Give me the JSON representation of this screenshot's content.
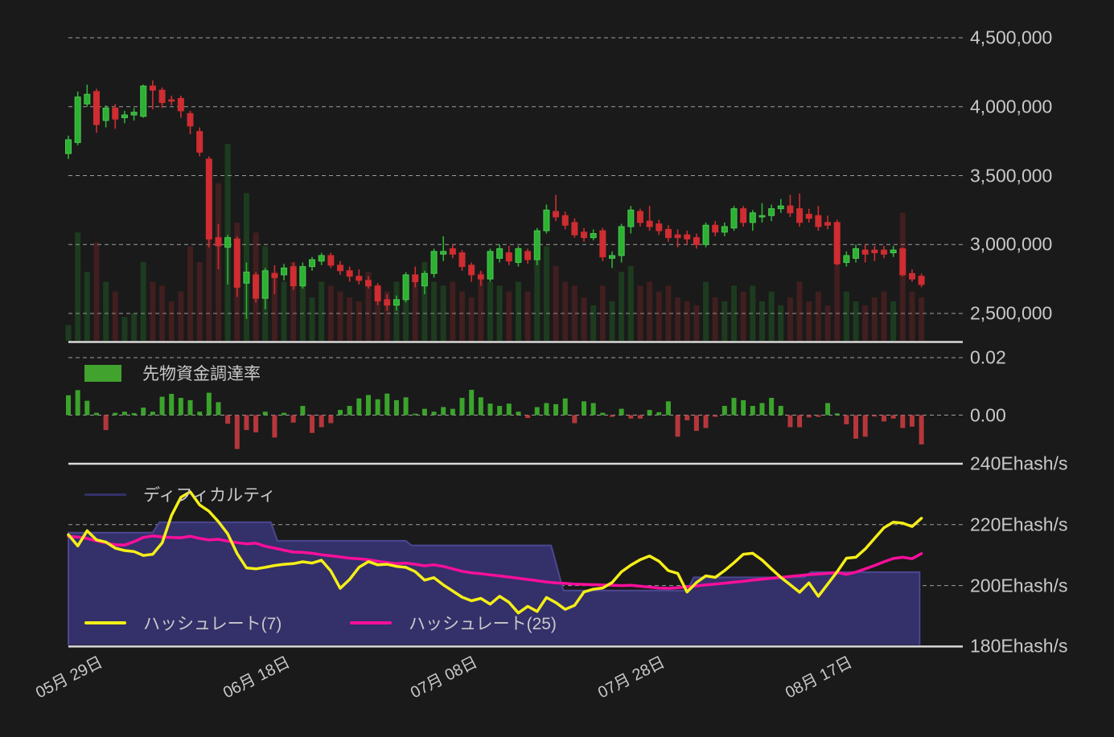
{
  "legends": {
    "funding": "先物資金調達率",
    "difficulty": "ディフィカルティ",
    "hashrate7": "ハッシュレート(7)",
    "hashrate25": "ハッシュレート(25)"
  },
  "colors": {
    "background": "#1a1a1a",
    "text": "#c9c9c9",
    "grid_dashed": "#b5b5b5",
    "separator": "#d9d9d9",
    "candle_up": "#2bb231",
    "candle_up_border": "#4ec654",
    "candle_down": "#cf2d31",
    "volume_up": "rgba(43,178,49,0.22)",
    "volume_down": "rgba(207,45,49,0.22)",
    "funding_up": "#3ba42c",
    "funding_down": "#b5373c",
    "funding_legend": "#42a22e",
    "difficulty_fill": "#34306a",
    "difficulty_line": "#4c4791",
    "hashrate7": "#f5ef17",
    "hashrate25": "#fb0f9b"
  },
  "chart_data": {
    "type": "candlestick",
    "description": "BTC/JPY daily candles with volume, futures funding rate bars, hashrate lines and mining difficulty step area",
    "x_ticks": [
      {
        "label": "05月 29日",
        "index": 0
      },
      {
        "label": "06月 18日",
        "index": 20
      },
      {
        "label": "07月 08日",
        "index": 40
      },
      {
        "label": "07月 28日",
        "index": 60
      },
      {
        "label": "08月 17日",
        "index": 80
      }
    ],
    "price_axis": {
      "unit": "JPY",
      "ticks": [
        {
          "label": "4,500,000",
          "value": 4.5
        },
        {
          "label": "4,000,000",
          "value": 4.0
        },
        {
          "label": "3,500,000",
          "value": 3.5
        },
        {
          "label": "3,000,000",
          "value": 3.0
        },
        {
          "label": "2,500,000",
          "value": 2.5
        }
      ]
    },
    "funding_axis": {
      "ticks": [
        {
          "label": "0.02",
          "value": 0.02
        },
        {
          "label": "0.00",
          "value": 0.0
        }
      ]
    },
    "hashrate_axis": {
      "ticks": [
        {
          "label": "240Ehash/s",
          "value": 240
        },
        {
          "label": "220Ehash/s",
          "value": 220
        },
        {
          "label": "200Ehash/s",
          "value": 200
        },
        {
          "label": "180Ehash/s",
          "value": 180
        }
      ]
    },
    "candles_ohlc_millions": [
      [
        3.66,
        3.79,
        3.62,
        3.76
      ],
      [
        3.74,
        4.11,
        3.72,
        4.07
      ],
      [
        4.02,
        4.16,
        4.0,
        4.09
      ],
      [
        4.11,
        4.13,
        3.81,
        3.87
      ],
      [
        3.9,
        4.01,
        3.85,
        3.99
      ],
      [
        3.99,
        4.02,
        3.84,
        3.91
      ],
      [
        3.92,
        3.97,
        3.88,
        3.94
      ],
      [
        3.94,
        3.99,
        3.9,
        3.96
      ],
      [
        3.93,
        4.16,
        3.92,
        4.15
      ],
      [
        4.15,
        4.19,
        3.98,
        4.12
      ],
      [
        4.12,
        4.14,
        3.99,
        4.03
      ],
      [
        4.05,
        4.08,
        4.01,
        4.04
      ],
      [
        4.06,
        4.08,
        3.92,
        3.97
      ],
      [
        3.95,
        3.97,
        3.8,
        3.86
      ],
      [
        3.82,
        3.85,
        3.64,
        3.67
      ],
      [
        3.62,
        3.64,
        2.98,
        3.04
      ],
      [
        3.05,
        3.15,
        2.82,
        2.99
      ],
      [
        2.98,
        3.07,
        2.71,
        3.05
      ],
      [
        3.04,
        3.06,
        2.62,
        2.69
      ],
      [
        2.72,
        2.87,
        2.46,
        2.8
      ],
      [
        2.78,
        2.8,
        2.58,
        2.61
      ],
      [
        2.61,
        2.83,
        2.53,
        2.81
      ],
      [
        2.79,
        2.85,
        2.64,
        2.76
      ],
      [
        2.78,
        2.86,
        2.74,
        2.83
      ],
      [
        2.84,
        2.87,
        2.67,
        2.7
      ],
      [
        2.7,
        2.87,
        2.68,
        2.84
      ],
      [
        2.84,
        2.91,
        2.81,
        2.89
      ],
      [
        2.88,
        2.94,
        2.85,
        2.92
      ],
      [
        2.92,
        2.94,
        2.83,
        2.85
      ],
      [
        2.85,
        2.88,
        2.78,
        2.81
      ],
      [
        2.81,
        2.84,
        2.73,
        2.77
      ],
      [
        2.77,
        2.82,
        2.71,
        2.74
      ],
      [
        2.74,
        2.77,
        2.68,
        2.7
      ],
      [
        2.7,
        2.72,
        2.56,
        2.59
      ],
      [
        2.6,
        2.64,
        2.52,
        2.56
      ],
      [
        2.56,
        2.63,
        2.52,
        2.6
      ],
      [
        2.6,
        2.8,
        2.58,
        2.78
      ],
      [
        2.78,
        2.84,
        2.69,
        2.73
      ],
      [
        2.7,
        2.81,
        2.64,
        2.79
      ],
      [
        2.79,
        2.97,
        2.76,
        2.95
      ],
      [
        2.93,
        3.06,
        2.88,
        2.95
      ],
      [
        2.97,
        3.0,
        2.9,
        2.93
      ],
      [
        2.94,
        2.96,
        2.81,
        2.84
      ],
      [
        2.85,
        2.87,
        2.73,
        2.78
      ],
      [
        2.78,
        2.81,
        2.7,
        2.75
      ],
      [
        2.75,
        2.97,
        2.73,
        2.95
      ],
      [
        2.9,
        3.0,
        2.87,
        2.97
      ],
      [
        2.94,
        2.99,
        2.85,
        2.88
      ],
      [
        2.87,
        2.99,
        2.84,
        2.97
      ],
      [
        2.95,
        2.97,
        2.86,
        2.89
      ],
      [
        2.89,
        3.12,
        2.85,
        3.1
      ],
      [
        3.1,
        3.29,
        3.08,
        3.25
      ],
      [
        3.24,
        3.36,
        3.17,
        3.2
      ],
      [
        3.21,
        3.24,
        3.11,
        3.14
      ],
      [
        3.16,
        3.19,
        3.05,
        3.07
      ],
      [
        3.09,
        3.12,
        3.02,
        3.05
      ],
      [
        3.05,
        3.11,
        3.03,
        3.08
      ],
      [
        3.1,
        3.12,
        2.88,
        2.91
      ],
      [
        2.9,
        2.95,
        2.83,
        2.92
      ],
      [
        2.92,
        3.15,
        2.87,
        3.13
      ],
      [
        3.13,
        3.28,
        3.08,
        3.25
      ],
      [
        3.24,
        3.26,
        3.13,
        3.16
      ],
      [
        3.17,
        3.28,
        3.1,
        3.13
      ],
      [
        3.15,
        3.18,
        3.07,
        3.1
      ],
      [
        3.11,
        3.14,
        3.02,
        3.05
      ],
      [
        3.07,
        3.11,
        2.98,
        3.05
      ],
      [
        3.07,
        3.1,
        3.0,
        3.04
      ],
      [
        3.05,
        3.08,
        2.97,
        3.0
      ],
      [
        3.0,
        3.16,
        2.98,
        3.14
      ],
      [
        3.14,
        3.17,
        3.06,
        3.09
      ],
      [
        3.09,
        3.16,
        3.06,
        3.13
      ],
      [
        3.12,
        3.28,
        3.1,
        3.26
      ],
      [
        3.26,
        3.28,
        3.13,
        3.16
      ],
      [
        3.16,
        3.25,
        3.1,
        3.23
      ],
      [
        3.2,
        3.3,
        3.16,
        3.21
      ],
      [
        3.21,
        3.29,
        3.17,
        3.26
      ],
      [
        3.26,
        3.33,
        3.23,
        3.28
      ],
      [
        3.28,
        3.36,
        3.2,
        3.23
      ],
      [
        3.26,
        3.37,
        3.13,
        3.16
      ],
      [
        3.22,
        3.26,
        3.16,
        3.19
      ],
      [
        3.21,
        3.28,
        3.1,
        3.13
      ],
      [
        3.16,
        3.21,
        3.11,
        3.14
      ],
      [
        3.16,
        3.18,
        2.85,
        2.86
      ],
      [
        2.87,
        2.95,
        2.84,
        2.92
      ],
      [
        2.9,
        3.0,
        2.87,
        2.97
      ],
      [
        2.96,
        3.0,
        2.87,
        2.93
      ],
      [
        2.96,
        2.99,
        2.88,
        2.94
      ],
      [
        2.96,
        2.99,
        2.9,
        2.93
      ],
      [
        2.94,
        2.99,
        2.91,
        2.96
      ],
      [
        2.97,
        2.98,
        2.77,
        2.78
      ],
      [
        2.79,
        2.82,
        2.73,
        2.75
      ],
      [
        2.77,
        2.79,
        2.69,
        2.71
      ]
    ],
    "volumes": [
      8,
      55,
      35,
      50,
      30,
      25,
      12,
      14,
      40,
      30,
      28,
      20,
      25,
      48,
      40,
      85,
      80,
      100,
      60,
      75,
      55,
      48,
      35,
      30,
      40,
      28,
      22,
      30,
      28,
      25,
      22,
      20,
      35,
      28,
      25,
      30,
      28,
      32,
      40,
      30,
      28,
      30,
      25,
      22,
      35,
      30,
      28,
      25,
      30,
      25,
      42,
      48,
      38,
      30,
      28,
      22,
      18,
      28,
      20,
      35,
      38,
      28,
      30,
      25,
      28,
      22,
      20,
      18,
      30,
      22,
      20,
      28,
      25,
      28,
      20,
      25,
      18,
      22,
      30,
      20,
      25,
      18,
      55,
      25,
      20,
      18,
      22,
      25,
      20,
      65,
      25,
      22
    ],
    "funding_rate": [
      0.0069,
      0.0087,
      0.005,
      0.0008,
      -0.0052,
      0.0008,
      0.0012,
      0.0007,
      0.0026,
      0.0012,
      0.0064,
      0.0074,
      0.006,
      0.0052,
      0.0012,
      0.0078,
      0.0045,
      -0.003,
      -0.0118,
      -0.0052,
      -0.006,
      0.0012,
      -0.0078,
      0.0008,
      -0.0026,
      0.0032,
      -0.0062,
      -0.0042,
      -0.0028,
      0.0018,
      0.0032,
      0.0058,
      0.007,
      0.0055,
      0.0075,
      0.0052,
      0.0062,
      0.0005,
      0.0022,
      0.0012,
      0.0028,
      0.0022,
      0.006,
      0.0088,
      0.0062,
      0.004,
      0.0032,
      0.004,
      0.0012,
      -0.001,
      0.0028,
      0.0042,
      0.0038,
      0.0058,
      -0.0028,
      0.0048,
      0.0042,
      0.0008,
      -0.0006,
      0.0022,
      -0.0012,
      -0.0012,
      0.0018,
      0.001,
      0.0048,
      -0.0075,
      -0.0018,
      -0.0055,
      -0.0045,
      -0.0006,
      0.0032,
      0.006,
      0.0052,
      0.0032,
      0.0042,
      0.006,
      0.0032,
      -0.0042,
      -0.0042,
      -0.0008,
      -0.0006,
      0.0042,
      0.0006,
      -0.0032,
      -0.0082,
      -0.0075,
      -0.0005,
      -0.0022,
      -0.0012,
      -0.0045,
      -0.004,
      -0.0102
    ],
    "hashrate7": [
      216.7,
      213.0,
      218.0,
      215.0,
      214.3,
      212.3,
      211.5,
      211.2,
      209.9,
      210.3,
      214.0,
      223.0,
      229.0,
      230.8,
      226.5,
      224.4,
      221.0,
      217.0,
      210.5,
      205.8,
      205.5,
      206.0,
      206.6,
      207.0,
      207.2,
      207.8,
      207.4,
      208.3,
      204.8,
      199.1,
      202.0,
      206.0,
      207.9,
      206.8,
      207.0,
      206.3,
      206.0,
      204.6,
      201.8,
      202.6,
      200.2,
      198.2,
      196.2,
      195.0,
      195.8,
      193.9,
      196.5,
      194.5,
      191.0,
      193.2,
      191.5,
      196.1,
      194.4,
      192.2,
      193.5,
      197.9,
      198.8,
      199.2,
      201.0,
      204.5,
      206.7,
      208.5,
      209.7,
      208.0,
      204.9,
      204.0,
      197.9,
      201.0,
      203.2,
      202.7,
      204.9,
      207.5,
      210.3,
      210.6,
      208.4,
      205.5,
      202.7,
      200.3,
      197.8,
      200.9,
      196.5,
      200.5,
      204.5,
      209.0,
      209.3,
      212.0,
      215.5,
      219.0,
      220.8,
      220.5,
      219.4,
      222.1
    ],
    "hashrate25": [
      216.2,
      215.9,
      215.5,
      214.7,
      214.0,
      213.4,
      213.3,
      214.4,
      215.8,
      216.3,
      216.0,
      215.8,
      215.7,
      216.2,
      215.5,
      215.0,
      215.2,
      214.6,
      214.1,
      213.7,
      213.9,
      212.9,
      212.3,
      211.6,
      211.0,
      210.9,
      210.6,
      210.1,
      209.8,
      209.4,
      209.0,
      208.8,
      208.5,
      208.0,
      207.6,
      207.2,
      207.4,
      207.0,
      206.5,
      206.8,
      206.3,
      205.5,
      204.7,
      204.2,
      203.9,
      203.5,
      203.2,
      202.8,
      202.4,
      202.0,
      201.6,
      201.2,
      200.9,
      200.7,
      200.5,
      200.4,
      200.3,
      200.2,
      200.1,
      200.0,
      200.1,
      199.8,
      199.5,
      199.2,
      199.1,
      199.3,
      199.6,
      199.9,
      200.2,
      200.5,
      200.8,
      201.1,
      201.4,
      201.8,
      202.1,
      202.4,
      202.7,
      203.0,
      203.3,
      203.6,
      203.8,
      204.0,
      204.3,
      203.7,
      204.4,
      205.5,
      206.6,
      207.8,
      208.9,
      209.3,
      208.8,
      210.5
    ],
    "difficulty_segments": [
      {
        "start": 0,
        "end": 9,
        "value": 217.4
      },
      {
        "start": 9.7,
        "end": 21.6,
        "value": 220.8
      },
      {
        "start": 22.3,
        "end": 36,
        "value": 214.7
      },
      {
        "start": 36.6,
        "end": 51.5,
        "value": 213.2
      },
      {
        "start": 52.8,
        "end": 66,
        "value": 198.4
      },
      {
        "start": 66.7,
        "end": 78.5,
        "value": 202.7
      },
      {
        "start": 79.2,
        "end": 90.8,
        "value": 204.4
      }
    ]
  }
}
